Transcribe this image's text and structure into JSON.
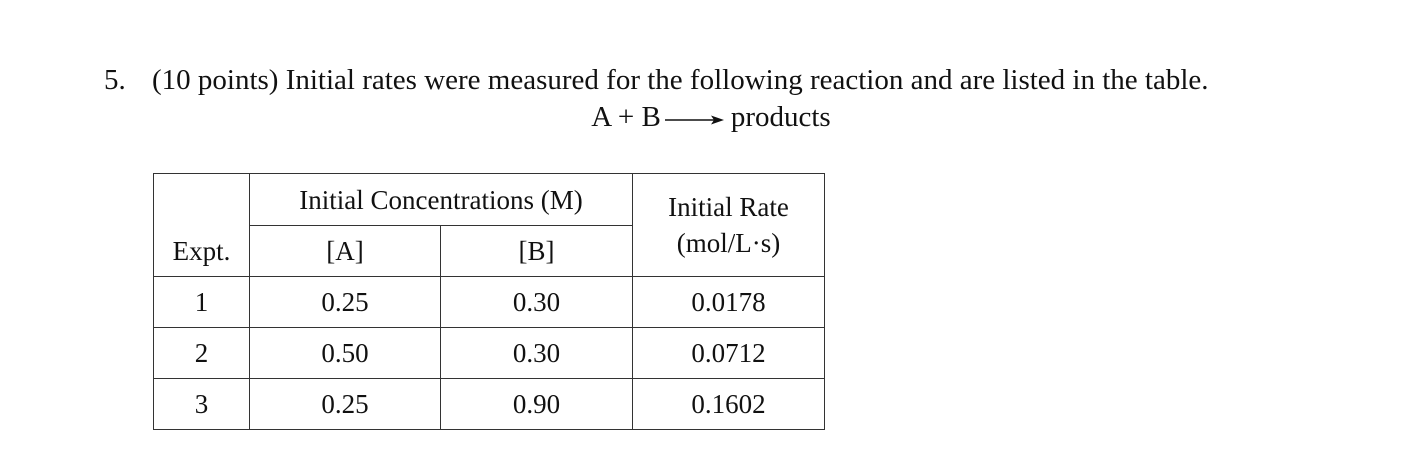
{
  "question": {
    "number": "5.",
    "text": "(10 points) Initial rates were measured for the following reaction and are listed in the table."
  },
  "equation": {
    "reactants": "A + B",
    "products": "products"
  },
  "table": {
    "group_header": "Initial Concentrations (M)",
    "col_expt": "Expt.",
    "col_a": "[A]",
    "col_b": "[B]",
    "col_rate_line1": "Initial Rate",
    "col_rate_line2": "(mol/L·s)",
    "rows": [
      {
        "expt": "1",
        "a": "0.25",
        "b": "0.30",
        "rate": "0.0178"
      },
      {
        "expt": "2",
        "a": "0.50",
        "b": "0.30",
        "rate": "0.0712"
      },
      {
        "expt": "3",
        "a": "0.25",
        "b": "0.90",
        "rate": "0.1602"
      }
    ]
  }
}
